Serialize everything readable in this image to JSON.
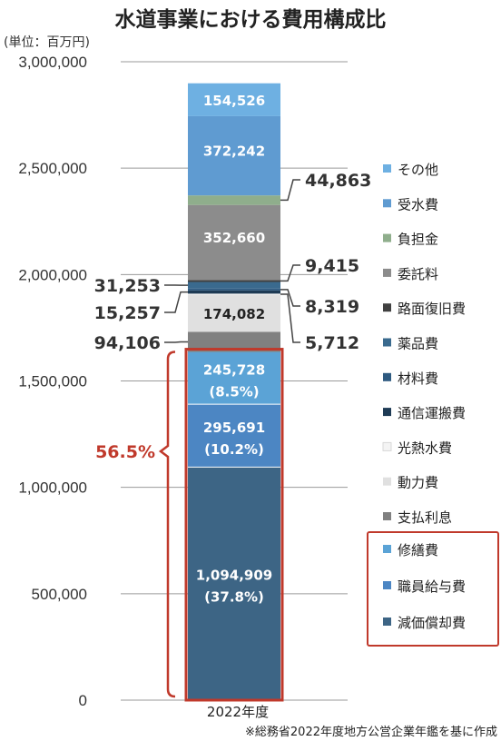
{
  "title": "水道事業における費用構成比",
  "unit_label": "(単位：百万円)",
  "source": "※総務省2022年度地方公営企業年鑑を基に作成",
  "colors": {
    "bracket": "#c0392b",
    "segments": {
      "減価償却費": "#3d6585",
      "職員給与費": "#4c86c3",
      "修繕費": "#5ba3d6",
      "支払利息": "#808080",
      "動力費": "#e0e0e0",
      "光熱水費": "#f4f4f4",
      "通信運搬費": "#1e3b55",
      "材料費": "#2e5a80",
      "薬品費": "#3a6a8e",
      "路面復旧費": "#404040",
      "委託料": "#8c8c8c",
      "負担金": "#8fae8c",
      "受水費": "#5f9bd1",
      "その他": "#6eb0e2"
    }
  },
  "chart_data": {
    "type": "bar",
    "stacked": true,
    "categories": [
      "2022年度"
    ],
    "y_ticks": [
      "0",
      "500,000",
      "1,000,000",
      "1,500,000",
      "2,000,000",
      "2,500,000",
      "3,000,000"
    ],
    "ylim": [
      0,
      3000000
    ],
    "grid": true,
    "series": [
      {
        "name": "減価償却費",
        "values": [
          1094909
        ],
        "label": "1,094,909",
        "pct": "(37.8%)"
      },
      {
        "name": "職員給与費",
        "values": [
          295691
        ],
        "label": "295,691",
        "pct": "(10.2%)"
      },
      {
        "name": "修繕費",
        "values": [
          245728
        ],
        "label": "245,728",
        "pct": "(8.5%)"
      },
      {
        "name": "支払利息",
        "values": [
          94106
        ],
        "label": "94,106"
      },
      {
        "name": "動力費",
        "values": [
          174082
        ],
        "label": "174,082"
      },
      {
        "name": "光熱水費",
        "values": [
          5712
        ],
        "label": "5,712"
      },
      {
        "name": "通信運搬費",
        "values": [
          15257
        ],
        "label": "15,257"
      },
      {
        "name": "材料費",
        "values": [
          8319
        ],
        "label": "8,319"
      },
      {
        "name": "薬品費",
        "values": [
          31253
        ],
        "label": "31,253"
      },
      {
        "name": "路面復旧費",
        "values": [
          9415
        ],
        "label": "9,415"
      },
      {
        "name": "委託料",
        "values": [
          352660
        ],
        "label": "352,660"
      },
      {
        "name": "負担金",
        "values": [
          44863
        ],
        "label": "44,863"
      },
      {
        "name": "受水費",
        "values": [
          372242
        ],
        "label": "372,242"
      },
      {
        "name": "その他",
        "values": [
          154526
        ],
        "label": "154,526"
      }
    ],
    "legend": [
      "その他",
      "受水費",
      "負担金",
      "委託料",
      "路面復旧費",
      "薬品費",
      "材料費",
      "通信運搬費",
      "光熱水費",
      "動力費",
      "支払利息",
      "修繕費",
      "職員給与費",
      "減価償却費"
    ],
    "legend_highlighted": [
      "修繕費",
      "職員給与費",
      "減価償却費"
    ],
    "highlight_total": "56.5%"
  }
}
